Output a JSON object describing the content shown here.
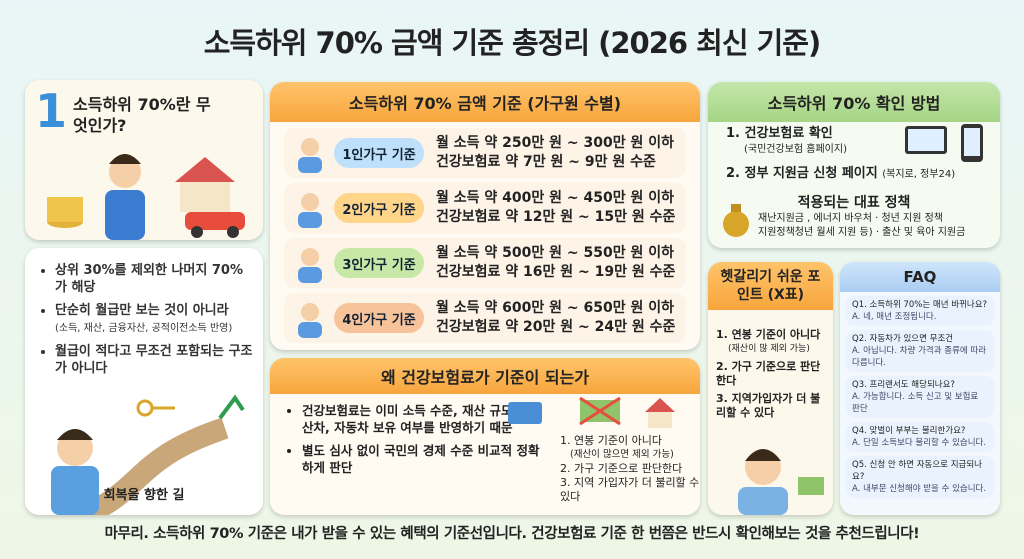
{
  "title": "소득하위 70% 금액 기준 총정리 (2026 최신 기준)",
  "intro": {
    "heading": "소득하위 70%란 무엇인가?",
    "bullets": [
      "상위 30%를 제외한 나머지 70%가 해당",
      "단순히 월급만 보는 것이 아니라",
      "월급이 적다고 무조건 포함되는 구조가 아니다"
    ],
    "note": "(소득, 재산, 금융자산, 공적이전소득 반영)",
    "caption": "회복을 향한 길"
  },
  "criteria": {
    "heading": "소득하위 70% 금액 기준 (가구원 수별)",
    "rows": [
      {
        "label": "1인가구 기준",
        "income": "월 소득 약 250만 원 ~ 300만 원 이하",
        "premium": "건강보험료 약 7만 원 ~ 9만 원 수준"
      },
      {
        "label": "2인가구 기준",
        "income": "월 소득 약 400만 원 ~ 450만 원 이하",
        "premium": "건강보험료 약 12만 원 ~ 15만 원 수준"
      },
      {
        "label": "3인가구 기준",
        "income": "월 소득 약 500만 원 ~ 550만 원 이하",
        "premium": "건강보험료 약 16만 원 ~ 19만 원 수준"
      },
      {
        "label": "4인가구 기준",
        "income": "월 소득 약 600만 원 ~ 650만 원 이하",
        "premium": "건강보험료 약 20만 원 ~ 24만 원 수준"
      }
    ]
  },
  "why": {
    "heading": "왜 건강보험료가 기준이 되는가",
    "bullets": [
      "건강보험료는 이미 소득 수준, 재산 규모, 재산차, 자동차 보유 여부를 반영하기 때문",
      "별도 심사 없이 국민의 경제 수준 비교적 정확하게 판단"
    ],
    "points": [
      "1. 연봉 기준이 아니다",
      "(재산이 많으면 제외 가능)",
      "2. 가구 기준으로 판단한다",
      "3. 지역 가입자가 더 불리할 수 있다"
    ]
  },
  "check": {
    "heading": "소득하위 70% 확인 방법",
    "steps": [
      {
        "title": "건강보험료 확인",
        "sub": "(국민건강보험 홈페이지)"
      },
      {
        "title": "정부 지원금 신청 페이지",
        "sub": "(복지로, 정부24)"
      }
    ],
    "step_numbers": [
      "1.",
      "2."
    ],
    "policy_heading": "적용되는 대표 정책",
    "policies": [
      "재난지원금 , 에너지 바우처 · 청년 지원 정책",
      "지원정책청년 월세 지원 등) · 출산 및 육아 지원금"
    ]
  },
  "confusing": {
    "heading": "헷갈리기 쉬운 포인트 (X표)",
    "items": [
      "1. 연봉 기준이 아니다",
      "(재산이 많 제외 가능)",
      "2. 가구 기준으로 판단한다",
      "3. 지역가입자가 더 불리할 수 있다"
    ]
  },
  "faq": {
    "heading": "FAQ",
    "items": [
      {
        "q": "Q1. 소득하위 70%는 매년 바뀌나요?",
        "a": "A. 네, 매년 조정됩니다."
      },
      {
        "q": "Q2. 자동차가 있으면 무조건",
        "a": "A. 아닙니다. 차량 가격과 종류에 따라 다릅니다."
      },
      {
        "q": "Q3. 프리랜서도 해당되나요?",
        "a": "A. 가능합니다. 소득 신고 및 보험료 판단"
      },
      {
        "q": "Q4. 맞벌이 부부는 불리한가요?",
        "a": "A. 단일 소득보다 불리할 수 있습니다."
      },
      {
        "q": "Q5. 신청 안 하면 자동으로 지급되나요?",
        "a": "A. 내부문 신청해야 받을 수 있습니다."
      }
    ]
  },
  "footer": "마무리. 소득하위 70% 기준은 내가 받을 수 있는 혜택의 기준선입니다. 건강보험료 기준 한 번쯤은 반드시 확인해보는 것을 추천드립니다!"
}
